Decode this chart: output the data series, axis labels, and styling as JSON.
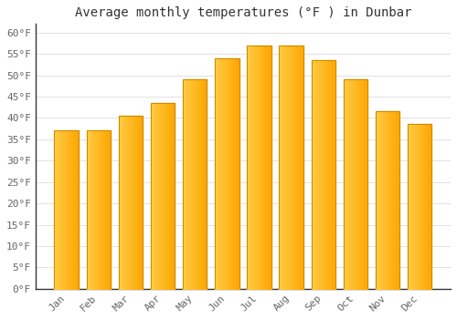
{
  "title": "Average monthly temperatures (°F ) in Dunbar",
  "months": [
    "Jan",
    "Feb",
    "Mar",
    "Apr",
    "May",
    "Jun",
    "Jul",
    "Aug",
    "Sep",
    "Oct",
    "Nov",
    "Dec"
  ],
  "values": [
    37,
    37,
    40.5,
    43.5,
    49,
    54,
    57,
    57,
    53.5,
    49,
    41.5,
    38.5
  ],
  "bar_color_left": "#FFCC44",
  "bar_color_right": "#FFA500",
  "bar_edge_color": "#CC8800",
  "background_color": "#FFFFFF",
  "grid_color": "#DDDDDD",
  "ylim": [
    0,
    62
  ],
  "yticks": [
    0,
    5,
    10,
    15,
    20,
    25,
    30,
    35,
    40,
    45,
    50,
    55,
    60
  ],
  "title_fontsize": 10,
  "tick_fontsize": 8,
  "axis_text_color": "#666666",
  "title_color": "#333333",
  "bar_width": 0.75
}
